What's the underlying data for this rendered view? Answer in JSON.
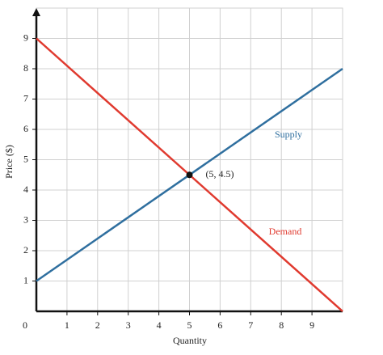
{
  "chart_data": {
    "type": "line",
    "x_label": "Quantity",
    "y_label": "Price ($)",
    "xlim": [
      0,
      10
    ],
    "ylim": [
      0,
      10
    ],
    "xticks": [
      0,
      1,
      2,
      3,
      4,
      5,
      6,
      7,
      8,
      9
    ],
    "yticks": [
      1,
      2,
      3,
      4,
      5,
      6,
      7,
      8,
      9
    ],
    "grid": true,
    "series": [
      {
        "name": "Supply",
        "color": "#2f6f9f",
        "x": [
          0,
          10
        ],
        "values": [
          1,
          8
        ]
      },
      {
        "name": "Demand",
        "color": "#e03a2f",
        "x": [
          0,
          10
        ],
        "values": [
          9,
          0
        ]
      }
    ],
    "points": [
      {
        "x": 5,
        "y": 4.5,
        "label": "(5, 4.5)"
      }
    ]
  }
}
